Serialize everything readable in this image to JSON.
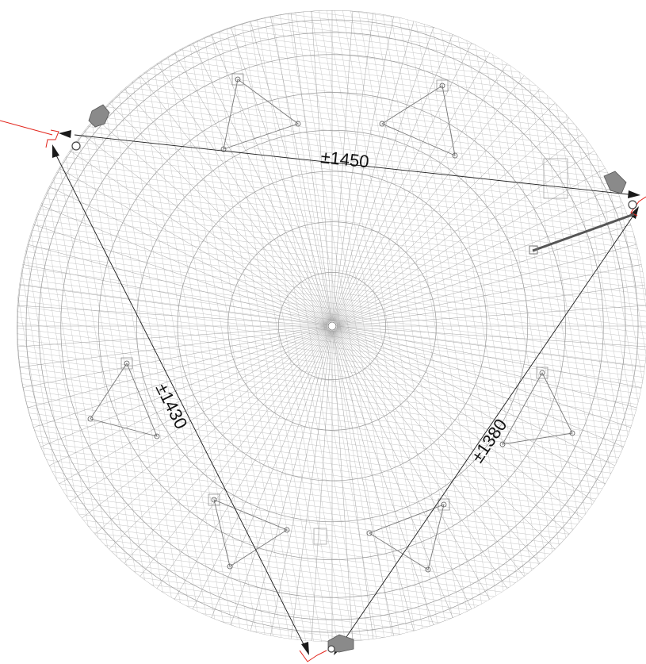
{
  "drawing": {
    "dimensions": [
      {
        "id": "top",
        "label": "±1450"
      },
      {
        "id": "left",
        "label": "±1430"
      },
      {
        "id": "right",
        "label": "±1380"
      }
    ]
  },
  "colors": {
    "wireframe": "#9a9a9a",
    "dimension": "#1a1a1a",
    "marker": "#e2231a",
    "background": "#ffffff"
  }
}
